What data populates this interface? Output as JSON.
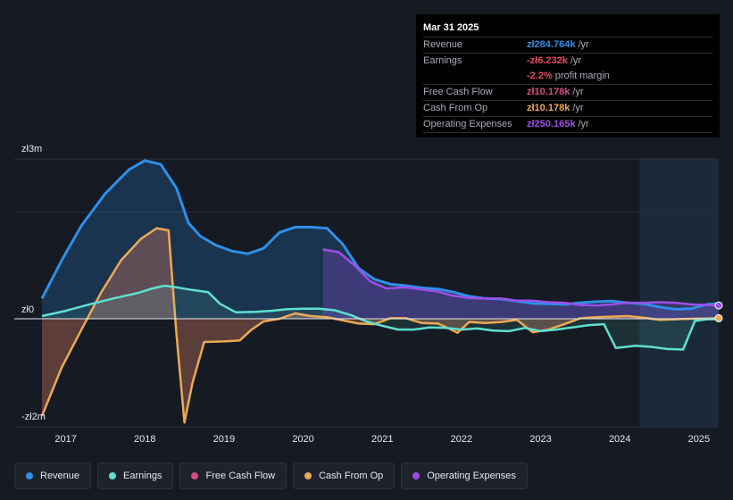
{
  "tooltip": {
    "date": "Mar 31 2025",
    "rows": [
      {
        "label": "Revenue",
        "value": "zł284.764k",
        "unit": "/yr",
        "color": "#2f8fe6"
      },
      {
        "label": "Earnings",
        "value": "-zł6.232k",
        "unit": "/yr",
        "color": "#e84a5f"
      },
      {
        "label": "",
        "value": "-2.2%",
        "unit": "profit margin",
        "color": "#e84a5f"
      },
      {
        "label": "Free Cash Flow",
        "value": "zł10.178k",
        "unit": "/yr",
        "color": "#d64a86"
      },
      {
        "label": "Cash From Op",
        "value": "zł10.178k",
        "unit": "/yr",
        "color": "#eaa955"
      },
      {
        "label": "Operating Expenses",
        "value": "zł250.165k",
        "unit": "/yr",
        "color": "#9b4fe6"
      }
    ]
  },
  "legend": [
    {
      "label": "Revenue",
      "color": "#2f8fe6"
    },
    {
      "label": "Earnings",
      "color": "#5fe0cf"
    },
    {
      "label": "Free Cash Flow",
      "color": "#d64a86"
    },
    {
      "label": "Cash From Op",
      "color": "#eaa955"
    },
    {
      "label": "Operating Expenses",
      "color": "#9b4fe6"
    }
  ],
  "chart_data": {
    "type": "area",
    "y_labels": {
      "top": "zł3m",
      "zero": "zł0",
      "bottom": "-zł2m"
    },
    "ylim": [
      -2000000,
      3000000
    ],
    "xlim": [
      2016.7,
      2025.25
    ],
    "x_ticks": [
      "2017",
      "2018",
      "2019",
      "2020",
      "2021",
      "2022",
      "2023",
      "2024",
      "2025"
    ],
    "grid": true,
    "forecast_shade_from": 2024.25,
    "series": [
      {
        "name": "Revenue",
        "color": "#2f8fe6",
        "points": [
          [
            2016.7,
            380000
          ],
          [
            2016.95,
            1100000
          ],
          [
            2017.2,
            1750000
          ],
          [
            2017.5,
            2350000
          ],
          [
            2017.8,
            2800000
          ],
          [
            2018.0,
            2970000
          ],
          [
            2018.2,
            2900000
          ],
          [
            2018.4,
            2450000
          ],
          [
            2018.55,
            1800000
          ],
          [
            2018.7,
            1550000
          ],
          [
            2018.9,
            1380000
          ],
          [
            2019.1,
            1270000
          ],
          [
            2019.3,
            1220000
          ],
          [
            2019.5,
            1320000
          ],
          [
            2019.7,
            1620000
          ],
          [
            2019.9,
            1720000
          ],
          [
            2020.1,
            1720000
          ],
          [
            2020.3,
            1700000
          ],
          [
            2020.5,
            1400000
          ],
          [
            2020.7,
            950000
          ],
          [
            2020.9,
            740000
          ],
          [
            2021.1,
            650000
          ],
          [
            2021.3,
            620000
          ],
          [
            2021.5,
            580000
          ],
          [
            2021.7,
            560000
          ],
          [
            2021.9,
            500000
          ],
          [
            2022.1,
            420000
          ],
          [
            2022.3,
            380000
          ],
          [
            2022.5,
            370000
          ],
          [
            2022.7,
            330000
          ],
          [
            2022.9,
            290000
          ],
          [
            2023.1,
            280000
          ],
          [
            2023.3,
            270000
          ],
          [
            2023.5,
            300000
          ],
          [
            2023.7,
            320000
          ],
          [
            2023.9,
            330000
          ],
          [
            2024.1,
            300000
          ],
          [
            2024.3,
            280000
          ],
          [
            2024.5,
            220000
          ],
          [
            2024.7,
            180000
          ],
          [
            2024.9,
            190000
          ],
          [
            2025.1,
            270000
          ],
          [
            2025.25,
            284764
          ]
        ]
      },
      {
        "name": "Earnings",
        "color": "#5fe0cf",
        "points": [
          [
            2016.7,
            50000
          ],
          [
            2017.0,
            150000
          ],
          [
            2017.3,
            270000
          ],
          [
            2017.6,
            380000
          ],
          [
            2017.9,
            480000
          ],
          [
            2018.1,
            570000
          ],
          [
            2018.25,
            620000
          ],
          [
            2018.4,
            590000
          ],
          [
            2018.6,
            540000
          ],
          [
            2018.8,
            500000
          ],
          [
            2018.95,
            280000
          ],
          [
            2019.15,
            120000
          ],
          [
            2019.4,
            130000
          ],
          [
            2019.6,
            150000
          ],
          [
            2019.8,
            180000
          ],
          [
            2020.0,
            190000
          ],
          [
            2020.2,
            190000
          ],
          [
            2020.4,
            160000
          ],
          [
            2020.6,
            70000
          ],
          [
            2020.8,
            -50000
          ],
          [
            2021.0,
            -130000
          ],
          [
            2021.2,
            -200000
          ],
          [
            2021.4,
            -200000
          ],
          [
            2021.6,
            -160000
          ],
          [
            2021.8,
            -170000
          ],
          [
            2022.0,
            -200000
          ],
          [
            2022.2,
            -180000
          ],
          [
            2022.4,
            -220000
          ],
          [
            2022.6,
            -230000
          ],
          [
            2022.8,
            -170000
          ],
          [
            2023.0,
            -230000
          ],
          [
            2023.2,
            -200000
          ],
          [
            2023.4,
            -160000
          ],
          [
            2023.6,
            -120000
          ],
          [
            2023.8,
            -100000
          ],
          [
            2023.95,
            -540000
          ],
          [
            2024.2,
            -500000
          ],
          [
            2024.4,
            -520000
          ],
          [
            2024.6,
            -560000
          ],
          [
            2024.8,
            -570000
          ],
          [
            2024.95,
            -40000
          ],
          [
            2025.1,
            -10000
          ],
          [
            2025.25,
            -6232
          ]
        ]
      },
      {
        "name": "Free Cash Flow",
        "color": "#d64a86",
        "points": [
          [
            2016.7,
            -1800000
          ],
          [
            2016.95,
            -900000
          ],
          [
            2017.2,
            -200000
          ],
          [
            2017.45,
            500000
          ],
          [
            2017.7,
            1100000
          ],
          [
            2017.95,
            1500000
          ],
          [
            2018.15,
            1700000
          ],
          [
            2018.3,
            1660000
          ],
          [
            2018.4,
            -300000
          ],
          [
            2018.5,
            -1920000
          ],
          [
            2018.6,
            -1200000
          ],
          [
            2018.75,
            -430000
          ],
          [
            2019.0,
            -420000
          ],
          [
            2019.2,
            -400000
          ],
          [
            2019.35,
            -200000
          ],
          [
            2019.5,
            -50000
          ],
          [
            2019.7,
            0
          ],
          [
            2019.9,
            100000
          ],
          [
            2020.1,
            50000
          ],
          [
            2020.3,
            30000
          ],
          [
            2020.5,
            -30000
          ],
          [
            2020.7,
            -90000
          ],
          [
            2020.9,
            -100000
          ],
          [
            2021.1,
            10000
          ],
          [
            2021.3,
            10000
          ],
          [
            2021.5,
            -80000
          ],
          [
            2021.7,
            -90000
          ],
          [
            2021.8,
            -150000
          ],
          [
            2021.95,
            -260000
          ],
          [
            2022.1,
            -60000
          ],
          [
            2022.3,
            -80000
          ],
          [
            2022.5,
            -60000
          ],
          [
            2022.7,
            -20000
          ],
          [
            2022.9,
            -250000
          ],
          [
            2023.1,
            -200000
          ],
          [
            2023.3,
            -100000
          ],
          [
            2023.5,
            10000
          ],
          [
            2023.7,
            30000
          ],
          [
            2023.9,
            40000
          ],
          [
            2024.1,
            50000
          ],
          [
            2024.3,
            20000
          ],
          [
            2024.5,
            -20000
          ],
          [
            2024.7,
            -10000
          ],
          [
            2024.9,
            0
          ],
          [
            2025.1,
            5000
          ],
          [
            2025.25,
            10178
          ]
        ]
      },
      {
        "name": "Cash From Op",
        "color": "#eaa955",
        "points": [
          [
            2016.7,
            -1800000
          ],
          [
            2016.95,
            -900000
          ],
          [
            2017.2,
            -200000
          ],
          [
            2017.45,
            500000
          ],
          [
            2017.7,
            1100000
          ],
          [
            2017.95,
            1500000
          ],
          [
            2018.15,
            1700000
          ],
          [
            2018.3,
            1660000
          ],
          [
            2018.4,
            -300000
          ],
          [
            2018.5,
            -1920000
          ],
          [
            2018.6,
            -1200000
          ],
          [
            2018.75,
            -430000
          ],
          [
            2019.0,
            -420000
          ],
          [
            2019.2,
            -400000
          ],
          [
            2019.35,
            -200000
          ],
          [
            2019.5,
            -50000
          ],
          [
            2019.7,
            0
          ],
          [
            2019.9,
            100000
          ],
          [
            2020.1,
            50000
          ],
          [
            2020.3,
            30000
          ],
          [
            2020.5,
            -30000
          ],
          [
            2020.7,
            -90000
          ],
          [
            2020.9,
            -100000
          ],
          [
            2021.1,
            10000
          ],
          [
            2021.3,
            10000
          ],
          [
            2021.5,
            -80000
          ],
          [
            2021.7,
            -90000
          ],
          [
            2021.8,
            -150000
          ],
          [
            2021.95,
            -260000
          ],
          [
            2022.1,
            -60000
          ],
          [
            2022.3,
            -80000
          ],
          [
            2022.5,
            -60000
          ],
          [
            2022.7,
            -20000
          ],
          [
            2022.9,
            -250000
          ],
          [
            2023.1,
            -200000
          ],
          [
            2023.3,
            -100000
          ],
          [
            2023.5,
            10000
          ],
          [
            2023.7,
            30000
          ],
          [
            2023.9,
            40000
          ],
          [
            2024.1,
            50000
          ],
          [
            2024.3,
            20000
          ],
          [
            2024.5,
            -20000
          ],
          [
            2024.7,
            -10000
          ],
          [
            2024.9,
            0
          ],
          [
            2025.1,
            5000
          ],
          [
            2025.25,
            10178
          ]
        ]
      },
      {
        "name": "Operating Expenses",
        "color": "#9b4fe6",
        "points": [
          [
            2020.25,
            1300000
          ],
          [
            2020.45,
            1250000
          ],
          [
            2020.65,
            1000000
          ],
          [
            2020.85,
            700000
          ],
          [
            2021.05,
            570000
          ],
          [
            2021.3,
            590000
          ],
          [
            2021.5,
            550000
          ],
          [
            2021.7,
            510000
          ],
          [
            2021.9,
            430000
          ],
          [
            2022.1,
            390000
          ],
          [
            2022.3,
            380000
          ],
          [
            2022.5,
            380000
          ],
          [
            2022.7,
            340000
          ],
          [
            2022.9,
            340000
          ],
          [
            2023.1,
            310000
          ],
          [
            2023.3,
            300000
          ],
          [
            2023.5,
            260000
          ],
          [
            2023.7,
            250000
          ],
          [
            2023.9,
            270000
          ],
          [
            2024.1,
            300000
          ],
          [
            2024.3,
            300000
          ],
          [
            2024.5,
            310000
          ],
          [
            2024.7,
            300000
          ],
          [
            2024.9,
            270000
          ],
          [
            2025.1,
            260000
          ],
          [
            2025.25,
            250165
          ]
        ]
      }
    ]
  }
}
